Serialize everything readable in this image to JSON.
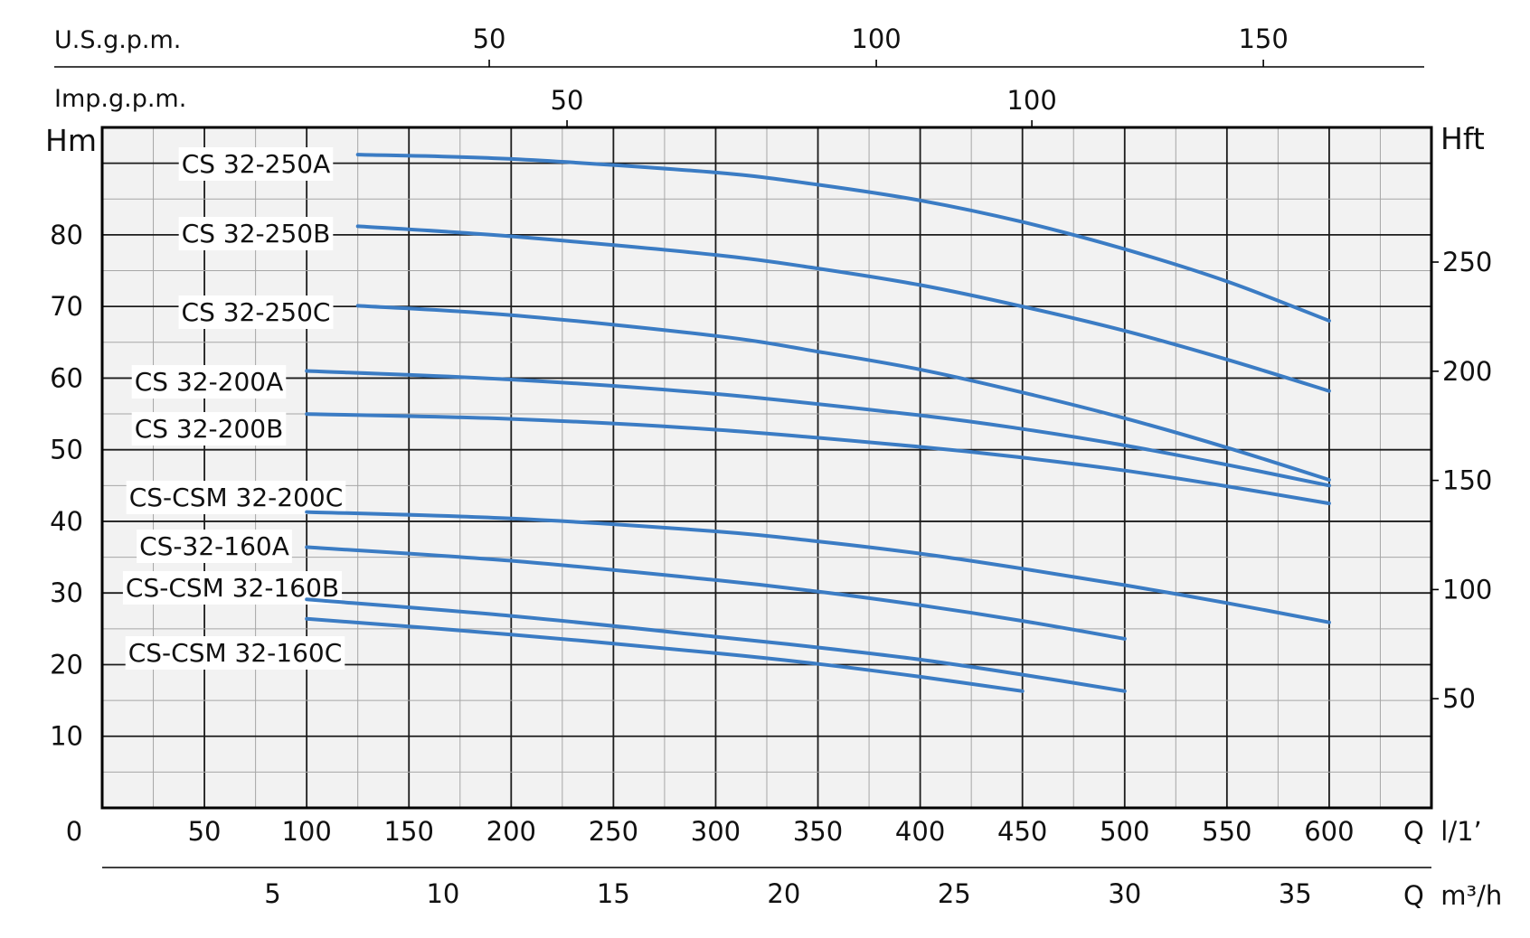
{
  "chart_data": {
    "type": "line",
    "ylabel_left": "Hm",
    "ylabel_right": "Hft",
    "x_unit_label_lpm": "Q  l/1’",
    "x_unit_label_m3h": "Q  m³/h",
    "top_axis_usgpm_label": "U.S.g.p.m.",
    "top_axis_impgpm_label": "Imp.g.p.m.",
    "xlim": [
      0,
      650
    ],
    "ylim": [
      0,
      95
    ],
    "grid": true,
    "x_ticks_lpm": [
      {
        "value": 0,
        "label": "0"
      },
      {
        "value": 50,
        "label": "50"
      },
      {
        "value": 100,
        "label": "100"
      },
      {
        "value": 150,
        "label": "150"
      },
      {
        "value": 200,
        "label": "200"
      },
      {
        "value": 250,
        "label": "250"
      },
      {
        "value": 300,
        "label": "300"
      },
      {
        "value": 350,
        "label": "350"
      },
      {
        "value": 400,
        "label": "400"
      },
      {
        "value": 450,
        "label": "450"
      },
      {
        "value": 500,
        "label": "500"
      },
      {
        "value": 550,
        "label": "550"
      },
      {
        "value": 600,
        "label": "600"
      }
    ],
    "x_ticks_m3h": [
      {
        "value": 5,
        "label": "5"
      },
      {
        "value": 10,
        "label": "10"
      },
      {
        "value": 15,
        "label": "15"
      },
      {
        "value": 20,
        "label": "20"
      },
      {
        "value": 25,
        "label": "25"
      },
      {
        "value": 30,
        "label": "30"
      },
      {
        "value": 35,
        "label": "35"
      }
    ],
    "x_ticks_usgpm": [
      {
        "value": 50,
        "label": "50"
      },
      {
        "value": 100,
        "label": "100"
      },
      {
        "value": 150,
        "label": "150"
      }
    ],
    "x_ticks_impgpm": [
      {
        "value": 50,
        "label": "50"
      },
      {
        "value": 100,
        "label": "100"
      }
    ],
    "y_ticks_m": [
      {
        "value": 10,
        "label": "10"
      },
      {
        "value": 20,
        "label": "20"
      },
      {
        "value": 30,
        "label": "30"
      },
      {
        "value": 40,
        "label": "40"
      },
      {
        "value": 50,
        "label": "50"
      },
      {
        "value": 60,
        "label": "60"
      },
      {
        "value": 70,
        "label": "70"
      },
      {
        "value": 80,
        "label": "80"
      }
    ],
    "y_ticks_ft": [
      {
        "value": 50,
        "label": "50"
      },
      {
        "value": 100,
        "label": "100"
      },
      {
        "value": 150,
        "label": "150"
      },
      {
        "value": 200,
        "label": "200"
      },
      {
        "value": 250,
        "label": "250"
      }
    ],
    "series_color": "#3b7cc4",
    "series": [
      {
        "name": "CS 32-250A",
        "points": [
          [
            125,
            91.2
          ],
          [
            200,
            90.6
          ],
          [
            300,
            88.7
          ],
          [
            350,
            87.0
          ],
          [
            400,
            84.8
          ],
          [
            450,
            81.8
          ],
          [
            500,
            78.0
          ],
          [
            550,
            73.5
          ],
          [
            600,
            68.0
          ]
        ]
      },
      {
        "name": "CS 32-250B",
        "points": [
          [
            125,
            81.2
          ],
          [
            200,
            79.8
          ],
          [
            300,
            77.2
          ],
          [
            350,
            75.3
          ],
          [
            400,
            73.0
          ],
          [
            450,
            70.0
          ],
          [
            500,
            66.6
          ],
          [
            550,
            62.6
          ],
          [
            600,
            58.2
          ]
        ]
      },
      {
        "name": "CS 32-250C",
        "points": [
          [
            125,
            70.1
          ],
          [
            200,
            68.8
          ],
          [
            300,
            65.9
          ],
          [
            350,
            63.7
          ],
          [
            400,
            61.2
          ],
          [
            450,
            58.0
          ],
          [
            500,
            54.4
          ],
          [
            550,
            50.3
          ],
          [
            600,
            45.8
          ]
        ]
      },
      {
        "name": "CS 32-200A",
        "points": [
          [
            100,
            61.0
          ],
          [
            200,
            59.8
          ],
          [
            300,
            57.8
          ],
          [
            400,
            54.8
          ],
          [
            450,
            52.9
          ],
          [
            500,
            50.6
          ],
          [
            550,
            47.9
          ],
          [
            600,
            45.0
          ]
        ]
      },
      {
        "name": "CS 32-200B",
        "points": [
          [
            100,
            55.0
          ],
          [
            200,
            54.3
          ],
          [
            300,
            52.8
          ],
          [
            400,
            50.4
          ],
          [
            450,
            48.9
          ],
          [
            500,
            47.1
          ],
          [
            550,
            44.9
          ],
          [
            600,
            42.5
          ]
        ]
      },
      {
        "name": "CS-CSM 32-200C",
        "points": [
          [
            100,
            41.3
          ],
          [
            200,
            40.4
          ],
          [
            300,
            38.6
          ],
          [
            350,
            37.2
          ],
          [
            400,
            35.5
          ],
          [
            450,
            33.4
          ],
          [
            500,
            31.1
          ],
          [
            550,
            28.6
          ],
          [
            600,
            25.9
          ]
        ]
      },
      {
        "name": "CS-32-160A",
        "points": [
          [
            100,
            36.4
          ],
          [
            200,
            34.5
          ],
          [
            300,
            31.8
          ],
          [
            350,
            30.2
          ],
          [
            400,
            28.3
          ],
          [
            450,
            26.1
          ],
          [
            500,
            23.6
          ]
        ]
      },
      {
        "name": "CS-CSM 32-160B",
        "points": [
          [
            100,
            29.1
          ],
          [
            200,
            26.8
          ],
          [
            300,
            23.9
          ],
          [
            350,
            22.4
          ],
          [
            400,
            20.7
          ],
          [
            450,
            18.6
          ],
          [
            500,
            16.3
          ]
        ]
      },
      {
        "name": "CS-CSM 32-160C",
        "points": [
          [
            100,
            26.4
          ],
          [
            200,
            24.2
          ],
          [
            300,
            21.6
          ],
          [
            350,
            20.1
          ],
          [
            400,
            18.3
          ],
          [
            450,
            16.3
          ]
        ]
      }
    ]
  }
}
